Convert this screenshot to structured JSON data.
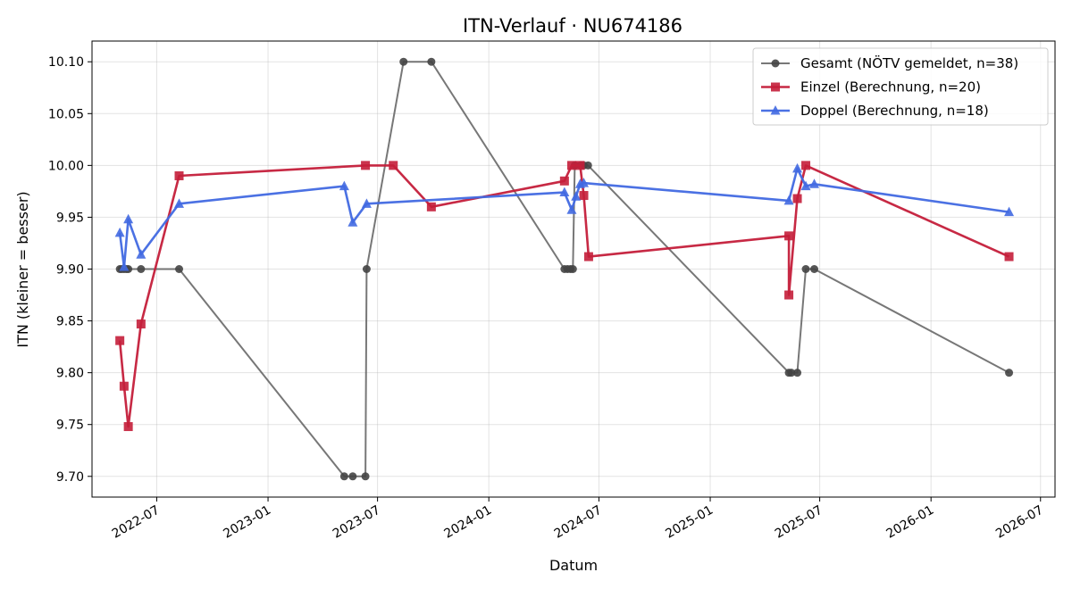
{
  "chart_data": {
    "type": "line",
    "title": "ITN-Verlauf · NU674186",
    "xlabel": "Datum",
    "ylabel": "ITN  (kleiner = besser)",
    "x_type": "date",
    "xlim": [
      "2022-03-16",
      "2026-07-25"
    ],
    "ylim": [
      9.68,
      10.12
    ],
    "grid": true,
    "legend_position": "top-right",
    "x_ticks": [
      "2022-07-01",
      "2023-01-01",
      "2023-07-01",
      "2024-01-01",
      "2024-07-01",
      "2025-01-01",
      "2025-07-01",
      "2026-01-01",
      "2026-07-01"
    ],
    "x_tick_labels": [
      "2022-07",
      "2023-01",
      "2023-07",
      "2024-01",
      "2024-07",
      "2025-01",
      "2025-07",
      "2026-01",
      "2026-07"
    ],
    "y_ticks": [
      9.7,
      9.75,
      9.8,
      9.85,
      9.9,
      9.95,
      10.0,
      10.05,
      10.1
    ],
    "y_tick_labels": [
      "9.70",
      "9.75",
      "9.80",
      "9.85",
      "9.90",
      "9.95",
      "10.00",
      "10.05",
      "10.10"
    ],
    "series": [
      {
        "name": "Gesamt (NÖTV gemeldet, n=38)",
        "color": "#555555",
        "marker": "circle",
        "points": [
          [
            "2022-05-01",
            9.9
          ],
          [
            "2022-05-04",
            9.9
          ],
          [
            "2022-05-08",
            9.9
          ],
          [
            "2022-05-12",
            9.9
          ],
          [
            "2022-05-15",
            9.9
          ],
          [
            "2022-06-05",
            9.9
          ],
          [
            "2022-08-07",
            9.9
          ],
          [
            "2023-05-07",
            9.7
          ],
          [
            "2023-05-21",
            9.7
          ],
          [
            "2023-06-11",
            9.7
          ],
          [
            "2023-06-13",
            9.9
          ],
          [
            "2023-08-13",
            10.1
          ],
          [
            "2023-09-28",
            10.1
          ],
          [
            "2024-05-05",
            9.9
          ],
          [
            "2024-05-10",
            9.9
          ],
          [
            "2024-05-15",
            9.9
          ],
          [
            "2024-05-19",
            9.9
          ],
          [
            "2024-05-22",
            10.0
          ],
          [
            "2024-06-01",
            10.0
          ],
          [
            "2024-06-06",
            10.0
          ],
          [
            "2024-06-13",
            10.0
          ],
          [
            "2025-05-11",
            9.8
          ],
          [
            "2025-05-15",
            9.8
          ],
          [
            "2025-05-25",
            9.8
          ],
          [
            "2025-06-08",
            9.9
          ],
          [
            "2025-06-22",
            9.9
          ],
          [
            "2026-05-10",
            9.8
          ]
        ]
      },
      {
        "name": "Einzel (Berechnung, n=20)",
        "color": "#c41e3a",
        "marker": "square",
        "points": [
          [
            "2022-05-01",
            9.831
          ],
          [
            "2022-05-08",
            9.787
          ],
          [
            "2022-05-15",
            9.748
          ],
          [
            "2022-06-05",
            9.847
          ],
          [
            "2022-08-07",
            9.99
          ],
          [
            "2023-06-11",
            10.0
          ],
          [
            "2023-07-27",
            10.0
          ],
          [
            "2023-09-28",
            9.96
          ],
          [
            "2024-05-05",
            9.985
          ],
          [
            "2024-05-17",
            10.0
          ],
          [
            "2024-05-31",
            10.0
          ],
          [
            "2024-06-06",
            9.971
          ],
          [
            "2024-06-14",
            9.912
          ],
          [
            "2025-05-11",
            9.932
          ],
          [
            "2025-05-11",
            9.875
          ],
          [
            "2025-05-25",
            9.968
          ],
          [
            "2025-06-08",
            10.0
          ],
          [
            "2026-05-10",
            9.912
          ]
        ]
      },
      {
        "name": "Doppel (Berechnung, n=18)",
        "color": "#4169e1",
        "marker": "triangle",
        "points": [
          [
            "2022-05-01",
            9.935
          ],
          [
            "2022-05-08",
            9.902
          ],
          [
            "2022-05-15",
            9.948
          ],
          [
            "2022-06-05",
            9.914
          ],
          [
            "2022-08-07",
            9.963
          ],
          [
            "2023-05-07",
            9.98
          ],
          [
            "2023-05-21",
            9.945
          ],
          [
            "2023-06-13",
            9.963
          ],
          [
            "2024-05-05",
            9.974
          ],
          [
            "2024-05-17",
            9.957
          ],
          [
            "2024-05-24",
            9.97
          ],
          [
            "2024-05-31",
            9.982
          ],
          [
            "2024-06-06",
            9.983
          ],
          [
            "2025-05-11",
            9.966
          ],
          [
            "2025-05-25",
            9.997
          ],
          [
            "2025-06-08",
            9.98
          ],
          [
            "2025-06-22",
            9.982
          ],
          [
            "2026-05-10",
            9.955
          ]
        ]
      }
    ]
  }
}
